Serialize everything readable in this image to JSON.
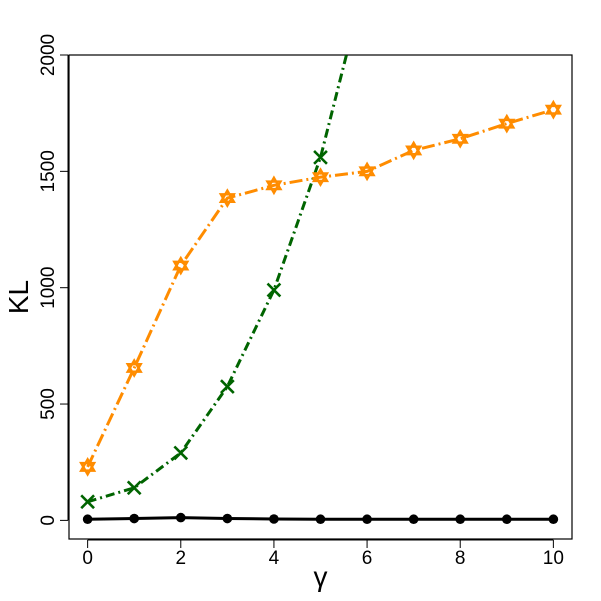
{
  "chart_data": {
    "type": "line",
    "title": "",
    "xlabel": "γ",
    "ylabel": "KL",
    "x": [
      0,
      1,
      2,
      3,
      4,
      5,
      6,
      7,
      8,
      9,
      10
    ],
    "xlim": [
      -0.4,
      10.4
    ],
    "ylim": [
      -80,
      2000
    ],
    "x_ticks": [
      0,
      2,
      4,
      6,
      8,
      10
    ],
    "y_ticks": [
      0,
      500,
      1000,
      1500,
      2000
    ],
    "grid": false,
    "legend": "none",
    "series": [
      {
        "style": "solid",
        "marker": "filled-circle",
        "color": "#000000",
        "values": [
          5,
          8,
          12,
          8,
          6,
          5,
          5,
          5,
          5,
          5,
          5
        ]
      },
      {
        "style": "dash-dot",
        "marker": "x",
        "color": "#006400",
        "values": [
          80,
          140,
          290,
          575,
          990,
          1560,
          2350,
          null,
          null,
          null,
          null
        ],
        "clip_at_ylim": true
      },
      {
        "style": "long-dash-dot",
        "marker": "star-of-david",
        "color": "#FF8C00",
        "values": [
          230,
          655,
          1095,
          1385,
          1440,
          1475,
          1500,
          1590,
          1640,
          1705,
          1765
        ]
      }
    ]
  }
}
